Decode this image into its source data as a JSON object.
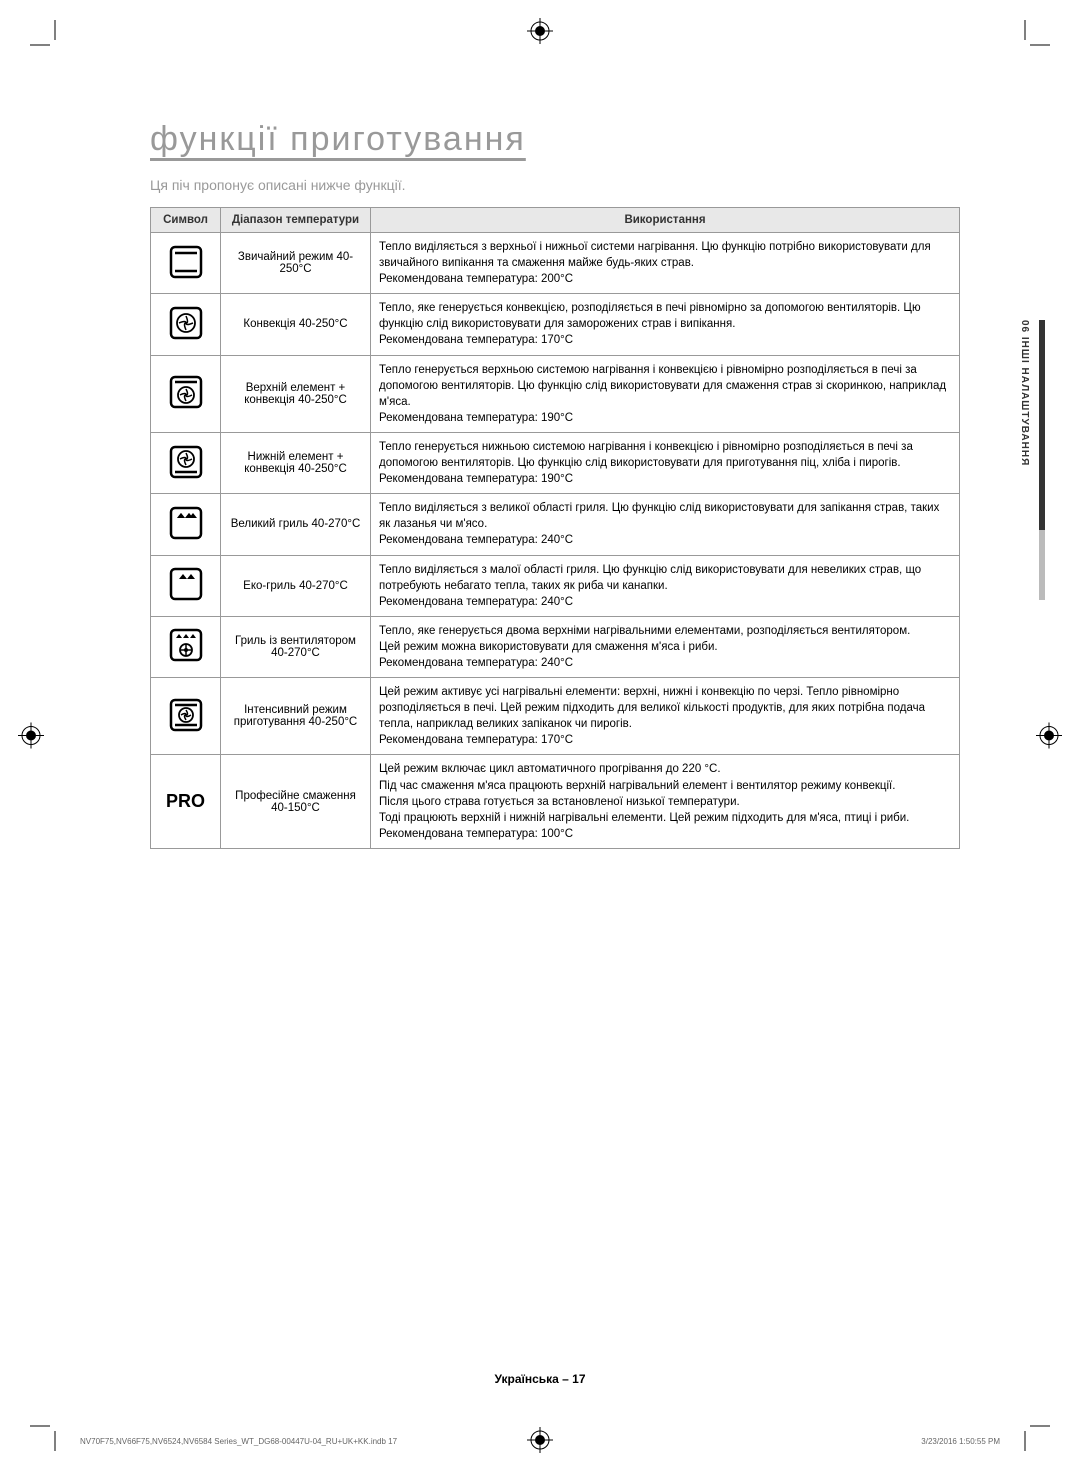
{
  "page": {
    "title": "функції приготування",
    "subtitle": "Ця піч пропонує описані нижче функції.",
    "footer": "Українська – 17",
    "doc_footer_left": "NV70F75,NV66F75,NV6524,NV6584 Series_WT_DG68-00447U-04_RU+UK+KK.indb   17",
    "doc_footer_right": "3/23/2016   1:50:55 PM",
    "side_tab": "06  ІНШІ НАЛАШТУВАННЯ"
  },
  "table": {
    "headers": {
      "symbol": "Символ",
      "range": "Діапазон температури",
      "usage": "Використання"
    },
    "rows": [
      {
        "symbol": "conventional",
        "range": "Звичайний режим 40-250°C",
        "usage": "Тепло виділяється з верхньої і нижньої системи нагрівання. Цю функцію потрібно використовувати для звичайного випікання та смаження майже будь-яких страв.\nРекомендована температура: 200°C"
      },
      {
        "symbol": "convection",
        "range": "Конвекція 40-250°C",
        "usage": "Тепло, яке генерується конвекцією, розподіляється в печі рівномірно за допомогою вентиляторів. Цю функцію слід використовувати для заморожених страв і випікання.\nРекомендована температура: 170°C"
      },
      {
        "symbol": "top-convection",
        "range": "Верхній елемент + конвекція 40-250°C",
        "usage": "Тепло генерується верхньою системою нагрівання і конвекцією і рівномірно розподіляється в печі за допомогою вентиляторів. Цю функцію слід використовувати для смаження страв зі скоринкою, наприклад м'яса.\nРекомендована температура: 190°C"
      },
      {
        "symbol": "bottom-convection",
        "range": "Нижній елемент + конвекція 40-250°C",
        "usage": "Тепло генерується нижньою системою нагрівання і конвекцією і рівномірно розподіляється в печі за допомогою вентиляторів. Цю функцію слід використовувати для приготування піц, хліба і пирогів.\nРекомендована температура: 190°C"
      },
      {
        "symbol": "large-grill",
        "range": "Великий гриль 40-270°C",
        "usage": "Тепло виділяється з великої області гриля. Цю функцію слід використовувати для запікання страв, таких як лазанья чи м'ясо.\nРекомендована температура: 240°C"
      },
      {
        "symbol": "eco-grill",
        "range": "Еко-гриль 40-270°C",
        "usage": "Тепло виділяється з малої області гриля. Цю функцію слід використовувати для невеликих страв, що потребують небагато тепла, таких як риба чи канапки.\nРекомендована температура: 240°C"
      },
      {
        "symbol": "fan-grill",
        "range": "Гриль із вентилятором 40-270°C",
        "usage": "Тепло, яке генерується двома верхніми нагрівальними елементами, розподіляється вентилятором.\nЦей режим можна використовувати для смаження м'яса і риби.\nРекомендована температура: 240°C"
      },
      {
        "symbol": "intensive",
        "range": "Інтенсивний режим приготування 40-250°C",
        "usage": "Цей режим активує усі нагрівальні елементи: верхні, нижні і конвекцію по черзі. Тепло рівномірно розподіляється в печі. Цей режим підходить для великої кількості продуктів, для яких потрібна подача тепла, наприклад великих запіканок чи пирогів.\nРекомендована температура: 170°C"
      },
      {
        "symbol": "pro",
        "range": "Професійне смаження 40-150°C",
        "usage": "Цей режим включає цикл автоматичного прогрівання до 220 °C.\nПід час смаження м'яса працюють верхній нагрівальний елемент і вентилятор режиму конвекції.\nПісля цього страва готується за встановленої низької температури.\nТоді працюють верхній і нижній нагрівальні елементи. Цей режим підходить для м'яса, птиці і риби.\nРекомендована температура: 100°C"
      }
    ]
  },
  "colors": {
    "title": "#999999",
    "border": "#999999",
    "header_bg": "#e8e8e8",
    "text": "#333333"
  }
}
